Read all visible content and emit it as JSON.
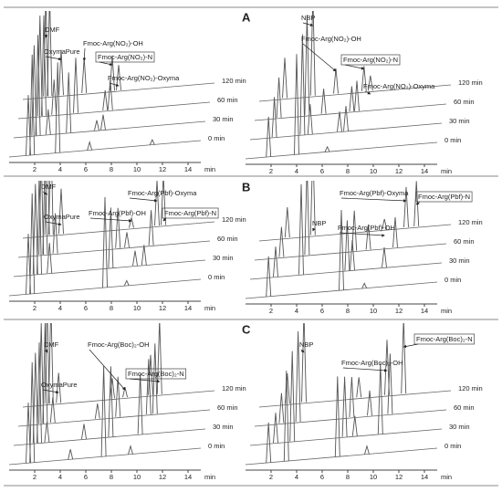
{
  "chart_data": [
    {
      "type": "line",
      "xlabel": "min",
      "xlim": [
        0,
        15
      ],
      "xticks": [
        2,
        4,
        6,
        8,
        10,
        12,
        14
      ],
      "series": [
        {
          "name": "0 min",
          "x": [
            1.5,
            1.8,
            3.8,
            6.3,
            11.2
          ],
          "values": [
            60,
            100,
            90,
            8,
            5
          ]
        },
        {
          "name": "30 min",
          "x": [
            1.6,
            1.9,
            2.7,
            4.3,
            6.5,
            7.0
          ],
          "values": [
            90,
            100,
            25,
            60,
            10,
            15
          ]
        },
        {
          "name": "60 min",
          "x": [
            1.7,
            2.0,
            2.8,
            4.5,
            6.8,
            7.2
          ],
          "values": [
            100,
            100,
            35,
            55,
            20,
            30
          ]
        },
        {
          "name": "120 min",
          "x": [
            1.8,
            2.1,
            3.0,
            4.8,
            7.0,
            7.5
          ],
          "values": [
            100,
            100,
            45,
            35,
            35,
            25
          ]
        }
      ],
      "annotations": [
        {
          "text": "DMF"
        },
        {
          "text": "OxymaPure"
        },
        {
          "text": "Fmoc-Arg(NO₂)-OH"
        },
        {
          "text": "Fmoc-Arg(NO₂)-N",
          "boxed": true
        },
        {
          "text": "Fmoc-Arg(NO₂)-Oxyma"
        }
      ]
    },
    {
      "type": "line",
      "panel_label": "A",
      "xlabel": "min",
      "xlim": [
        0,
        15
      ],
      "xticks": [
        2,
        4,
        6,
        8,
        10,
        12,
        14
      ],
      "series": [
        {
          "name": "0 min",
          "x": [
            1.8,
            4.0,
            6.4
          ],
          "values": [
            40,
            100,
            5
          ]
        },
        {
          "name": "30 min",
          "x": [
            1.9,
            4.1,
            4.7,
            7.0,
            7.5
          ],
          "values": [
            40,
            100,
            30,
            20,
            25
          ]
        },
        {
          "name": "60 min",
          "x": [
            1.9,
            4.1,
            5.4,
            7.6,
            8.0
          ],
          "values": [
            40,
            100,
            25,
            25,
            30
          ]
        },
        {
          "name": "120 min",
          "x": [
            2.0,
            4.2,
            6.0,
            8.2,
            8.7
          ],
          "values": [
            40,
            100,
            25,
            25,
            15
          ]
        }
      ],
      "annotations": [
        {
          "text": "NBP"
        },
        {
          "text": "Fmoc-Arg(NO₂)-OH"
        },
        {
          "text": "Fmoc-Arg(NO₂)-N",
          "boxed": true
        },
        {
          "text": "Fmoc-Arg(NO₂)-Oxyma"
        }
      ]
    },
    {
      "type": "line",
      "xlabel": "min",
      "xlim": [
        0,
        15
      ],
      "xticks": [
        2,
        4,
        6,
        8,
        10,
        12,
        14
      ],
      "series": [
        {
          "name": "0 min",
          "x": [
            1.5,
            1.8,
            7.5,
            9.2
          ],
          "values": [
            60,
            100,
            90,
            5
          ]
        },
        {
          "name": "30 min",
          "x": [
            1.7,
            2.0,
            2.8,
            7.6,
            9.5,
            10.2
          ],
          "values": [
            90,
            100,
            30,
            60,
            15,
            20
          ]
        },
        {
          "name": "60 min",
          "x": [
            1.8,
            2.1,
            2.9,
            7.8,
            8.5,
            10.4
          ],
          "values": [
            100,
            100,
            40,
            40,
            15,
            35
          ]
        },
        {
          "name": "120 min",
          "x": [
            1.9,
            2.2,
            3.0,
            8.5,
            10.5,
            11.0
          ],
          "values": [
            100,
            100,
            45,
            10,
            45,
            50
          ]
        }
      ],
      "annotations": [
        {
          "text": "DMF"
        },
        {
          "text": "OxymaPure"
        },
        {
          "text": "Fmoc-Arg(Pbf)-OH"
        },
        {
          "text": "Fmoc-Arg(Pbf)-Oxyma"
        },
        {
          "text": "Fmoc-Arg(Pbf)-N",
          "boxed": true
        }
      ]
    },
    {
      "type": "line",
      "panel_label": "B",
      "xlabel": "min",
      "xlim": [
        0,
        15
      ],
      "xticks": [
        2,
        4,
        6,
        8,
        10,
        12,
        14
      ],
      "series": [
        {
          "name": "0 min",
          "x": [
            1.8,
            7.5,
            9.3
          ],
          "values": [
            40,
            80,
            5
          ]
        },
        {
          "name": "30 min",
          "x": [
            2.0,
            4.0,
            7.6,
            8.0,
            10.5
          ],
          "values": [
            30,
            90,
            50,
            30,
            20
          ]
        },
        {
          "name": "60 min",
          "x": [
            2.1,
            4.1,
            7.8,
            8.9,
            11.0
          ],
          "values": [
            30,
            90,
            40,
            25,
            30
          ]
        },
        {
          "name": "120 min",
          "x": [
            2.2,
            4.2,
            9.8,
            11.5,
            12.3
          ],
          "values": [
            30,
            90,
            10,
            40,
            45
          ]
        }
      ],
      "annotations": [
        {
          "text": "NBP"
        },
        {
          "text": "Fmoc-Arg(Pbf)-Oxyma"
        },
        {
          "text": "Fmoc-Arg(Pbf)-N",
          "boxed": true
        },
        {
          "text": "Fmoc-Arg(Pbf)-OH"
        }
      ]
    },
    {
      "type": "line",
      "xlabel": "min",
      "xlim": [
        0,
        15
      ],
      "xticks": [
        2,
        4,
        6,
        8,
        10,
        12,
        14
      ],
      "series": [
        {
          "name": "0 min",
          "x": [
            1.5,
            1.8,
            4.8,
            7.4,
            9.5
          ],
          "values": [
            60,
            100,
            10,
            90,
            8
          ]
        },
        {
          "name": "30 min",
          "x": [
            1.7,
            2.0,
            2.6,
            5.5,
            7.6,
            9.9
          ],
          "values": [
            90,
            100,
            20,
            15,
            70,
            60
          ]
        },
        {
          "name": "60 min",
          "x": [
            1.8,
            2.1,
            2.7,
            6.2,
            7.8,
            10.2,
            10.7
          ],
          "values": [
            100,
            100,
            25,
            15,
            40,
            55,
            70
          ]
        },
        {
          "name": "120 min",
          "x": [
            1.9,
            2.2,
            2.8,
            7.0,
            8.0,
            10.0,
            10.7
          ],
          "values": [
            100,
            100,
            30,
            20,
            10,
            40,
            75
          ]
        }
      ],
      "annotations": [
        {
          "text": "DMF"
        },
        {
          "text": "OxymaPure"
        },
        {
          "text": "Fmoc-Arg(Boc)₂-OH"
        },
        {
          "text": "Fmoc-Arg(Boc)₂-N",
          "boxed": true
        }
      ]
    },
    {
      "type": "line",
      "panel_label": "C",
      "xlabel": "min",
      "xlim": [
        0,
        15
      ],
      "xticks": [
        2,
        4,
        6,
        8,
        10,
        12,
        14
      ],
      "series": [
        {
          "name": "0 min",
          "x": [
            1.8,
            3.2,
            7.2,
            9.5
          ],
          "values": [
            40,
            90,
            80,
            8
          ]
        },
        {
          "name": "30 min",
          "x": [
            2.0,
            3.3,
            7.4,
            8.2,
            10.2
          ],
          "values": [
            30,
            90,
            60,
            20,
            70
          ]
        },
        {
          "name": "60 min",
          "x": [
            2.1,
            3.4,
            7.6,
            9.0,
            10.6
          ],
          "values": [
            30,
            90,
            40,
            25,
            60
          ]
        },
        {
          "name": "120 min",
          "x": [
            2.2,
            3.5,
            7.8,
            10.0,
            11.3
          ],
          "values": [
            30,
            90,
            20,
            55,
            75
          ]
        }
      ],
      "annotations": [
        {
          "text": "NBP"
        },
        {
          "text": "Fmoc-Arg(Boc)₂-N",
          "boxed": true
        },
        {
          "text": "Fmoc-Arg(Boc)₂-OH"
        }
      ]
    }
  ]
}
